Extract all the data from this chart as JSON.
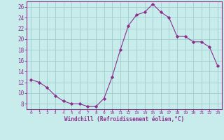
{
  "x": [
    0,
    1,
    2,
    3,
    4,
    5,
    6,
    7,
    8,
    9,
    10,
    11,
    12,
    13,
    14,
    15,
    16,
    17,
    18,
    19,
    20,
    21,
    22,
    23
  ],
  "y": [
    12.5,
    12.0,
    11.0,
    9.5,
    8.5,
    8.0,
    8.0,
    7.5,
    7.5,
    9.0,
    13.0,
    18.0,
    22.5,
    24.5,
    25.0,
    26.5,
    25.0,
    24.0,
    20.5,
    20.5,
    19.5,
    19.5,
    18.5,
    15.0
  ],
  "line_color": "#8B2F8B",
  "marker": "D",
  "marker_size": 2.2,
  "bg_color": "#c8ecec",
  "grid_color": "#a0cccc",
  "xlabel": "Windchill (Refroidissement éolien,°C)",
  "xlabel_color": "#8B2F8B",
  "tick_color": "#8B2F8B",
  "spine_color": "#8B2F8B",
  "ylim": [
    7,
    27
  ],
  "xlim": [
    -0.5,
    23.5
  ],
  "yticks": [
    8,
    10,
    12,
    14,
    16,
    18,
    20,
    22,
    24,
    26
  ],
  "xticks": [
    0,
    1,
    2,
    3,
    4,
    5,
    6,
    7,
    8,
    9,
    10,
    11,
    12,
    13,
    14,
    15,
    16,
    17,
    18,
    19,
    20,
    21,
    22,
    23
  ],
  "xtick_labels": [
    "0",
    "1",
    "2",
    "3",
    "4",
    "5",
    "6",
    "7",
    "8",
    "9",
    "10",
    "11",
    "12",
    "13",
    "14",
    "15",
    "16",
    "17",
    "18",
    "19",
    "20",
    "21",
    "22",
    "23"
  ]
}
